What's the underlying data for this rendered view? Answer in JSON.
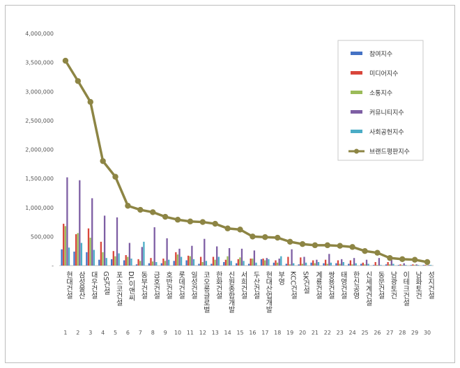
{
  "chart_data": {
    "type": "bar",
    "title": "",
    "xlabel": "",
    "ylabel": "",
    "ylim": [
      0,
      4000000
    ],
    "y_ticks": [
      "-",
      "500,000",
      "1,000,000",
      "1,500,000",
      "2,000,000",
      "2,500,000",
      "3,000,000",
      "3,500,000",
      "4,000,000"
    ],
    "legend_position": "top-right",
    "grid": false,
    "categories": [
      "현대건설",
      "삼성물산",
      "대우건설",
      "GS건설",
      "포스코건설",
      "DL이앤씨",
      "동부건설",
      "금호건설",
      "호반건설",
      "롯데건설",
      "일성건설",
      "코오롱글로벌",
      "한화건설",
      "신원종합개발",
      "서희건설",
      "두산건설",
      "현대산업개발",
      "부영",
      "KCC건설",
      "SK건설",
      "계룡건설",
      "쌍용건설",
      "태영건설",
      "한신공영",
      "신세계건설",
      "동문건설",
      "남광토건",
      "이테크건설",
      "남화토건",
      "성지건설"
    ],
    "ranks": [
      "1",
      "2",
      "3",
      "4",
      "5",
      "6",
      "7",
      "8",
      "9",
      "10",
      "11",
      "12",
      "13",
      "14",
      "15",
      "16",
      "17",
      "18",
      "19",
      "20",
      "21",
      "22",
      "23",
      "24",
      "25",
      "26",
      "27",
      "28",
      "29",
      "30"
    ],
    "series": [
      {
        "name": "참여지수",
        "type": "bar",
        "color": "#4472c4",
        "values": [
          280000,
          240000,
          230000,
          100000,
          110000,
          90000,
          20000,
          40000,
          40000,
          80000,
          90000,
          30000,
          30000,
          60000,
          40000,
          30000,
          110000,
          50000,
          30000,
          20000,
          50000,
          40000,
          40000,
          30000,
          30000,
          10000,
          20000,
          10000,
          10000,
          10000
        ]
      },
      {
        "name": "미디어지수",
        "type": "bar",
        "color": "#d9463b",
        "values": [
          720000,
          540000,
          640000,
          410000,
          250000,
          180000,
          110000,
          130000,
          120000,
          230000,
          170000,
          150000,
          150000,
          100000,
          110000,
          120000,
          120000,
          90000,
          150000,
          140000,
          90000,
          100000,
          90000,
          90000,
          50000,
          60000,
          60000,
          20000,
          20000,
          10000
        ]
      },
      {
        "name": "소통지수",
        "type": "bar",
        "color": "#9bbb59",
        "values": [
          680000,
          560000,
          480000,
          230000,
          160000,
          150000,
          80000,
          70000,
          80000,
          190000,
          160000,
          60000,
          100000,
          160000,
          140000,
          120000,
          90000,
          50000,
          20000,
          30000,
          40000,
          30000,
          30000,
          20000,
          20000,
          10000,
          20000,
          10000,
          10000,
          5000
        ]
      },
      {
        "name": "커뮤니티지수",
        "type": "bar",
        "color": "#7e5fa4",
        "values": [
          1520000,
          1470000,
          1160000,
          860000,
          830000,
          390000,
          320000,
          660000,
          470000,
          290000,
          340000,
          460000,
          330000,
          300000,
          290000,
          260000,
          130000,
          120000,
          280000,
          150000,
          100000,
          200000,
          110000,
          130000,
          100000,
          130000,
          100000,
          40000,
          20000,
          10000
        ]
      },
      {
        "name": "사회공헌지수",
        "type": "bar",
        "color": "#4bacc6",
        "values": [
          310000,
          390000,
          270000,
          130000,
          210000,
          120000,
          410000,
          60000,
          100000,
          150000,
          110000,
          80000,
          150000,
          80000,
          80000,
          50000,
          110000,
          160000,
          40000,
          50000,
          60000,
          50000,
          60000,
          40000,
          30000,
          10000,
          30000,
          10000,
          10000,
          10000
        ]
      },
      {
        "name": "브랜드평판지수",
        "type": "line",
        "color": "#8d8544",
        "values": [
          3530000,
          3180000,
          2820000,
          1800000,
          1530000,
          1030000,
          960000,
          920000,
          840000,
          790000,
          760000,
          750000,
          720000,
          640000,
          620000,
          500000,
          490000,
          480000,
          410000,
          370000,
          350000,
          350000,
          340000,
          320000,
          250000,
          220000,
          130000,
          110000,
          100000,
          60000
        ]
      }
    ]
  }
}
